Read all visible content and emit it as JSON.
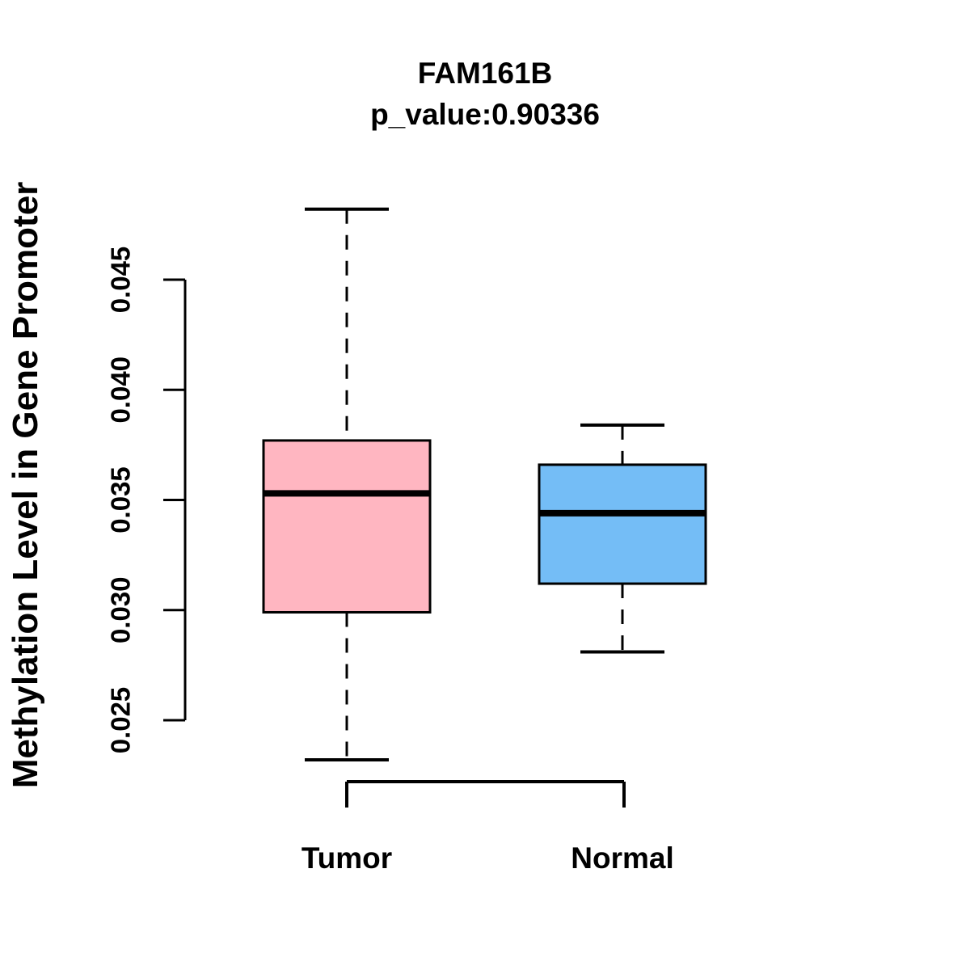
{
  "header": {
    "title": "FAM161B",
    "subtitle": "p_value:0.90336"
  },
  "chart_data": {
    "type": "box",
    "title": "FAM161B",
    "subtitle": "p_value:0.90336",
    "p_value": 0.90336,
    "ylabel": "Methylation Level in Gene Promoter",
    "xlabel": "",
    "categories": [
      "Tumor",
      "Normal"
    ],
    "y_ticks": {
      "values": [
        0.025,
        0.03,
        0.035,
        0.04,
        0.045
      ],
      "labels": [
        "0.025",
        "0.030",
        "0.035",
        "0.040",
        "0.045"
      ]
    },
    "ylim": [
      0.0232,
      0.0482
    ],
    "grid": false,
    "legend": "none",
    "series": [
      {
        "name": "Tumor",
        "fill_color": "#FFB6C1",
        "stroke_color": "#000000",
        "whisker_low": 0.0232,
        "q1": 0.0299,
        "median": 0.0353,
        "q3": 0.0377,
        "whisker_high": 0.0482
      },
      {
        "name": "Normal",
        "fill_color": "#74BDF6",
        "stroke_color": "#000000",
        "whisker_low": 0.0281,
        "q1": 0.0312,
        "median": 0.0344,
        "q3": 0.0366,
        "whisker_high": 0.0384
      }
    ],
    "colors": {
      "background": "#FFFFFF",
      "axis": "#000000",
      "text": "#000000"
    }
  }
}
